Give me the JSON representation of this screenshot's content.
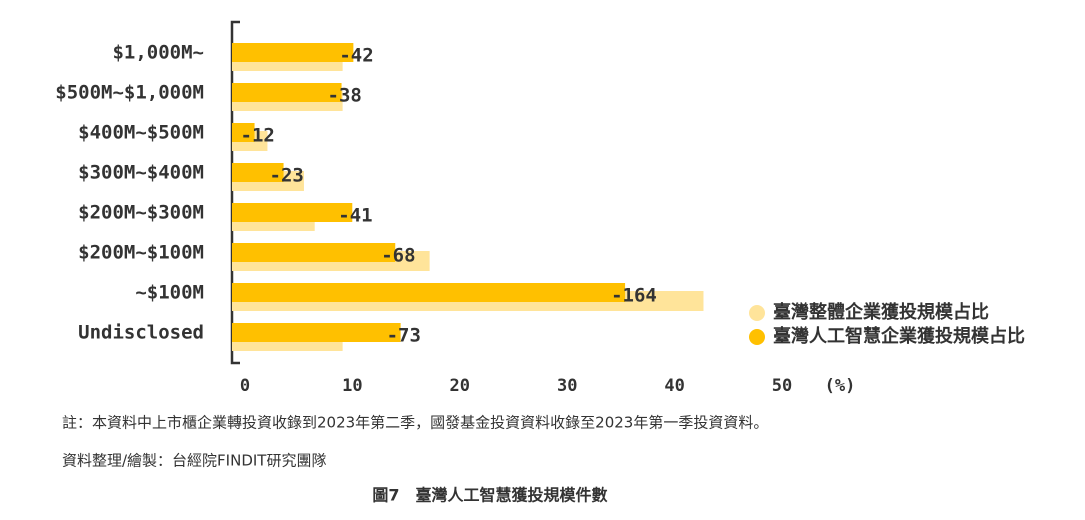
{
  "chart_data": {
    "type": "barh",
    "categories": [
      "$1,000M~",
      "$500M~$1,000M",
      "$400M~$500M",
      "$300M~$400M",
      "$200M~$300M",
      "$200M~$100M",
      "~$100M",
      "Undisclosed"
    ],
    "series": [
      {
        "name": "臺灣整體企業獲投規模占比",
        "color": "#FFE49A",
        "values": [
          10.3,
          10.3,
          3.3,
          6.7,
          7.7,
          18.4,
          43.9,
          10.3
        ]
      },
      {
        "name": "臺灣人工智慧企業獲投規模占比",
        "color": "#FFC000",
        "values": [
          11.3,
          10.2,
          2.1,
          4.8,
          11.2,
          15.2,
          36.6,
          15.7
        ]
      }
    ],
    "bar_labels": [
      "-42",
      "-38",
      "-12",
      "-23",
      "-41",
      "-68",
      "-164",
      "-73"
    ],
    "xlim": [
      0,
      50
    ],
    "xticks": [
      0,
      10,
      20,
      30,
      40,
      50
    ],
    "x_label": "(%)",
    "notes": [
      "註：本資料中上市櫃企業轉投資收錄到2023年第二季，國發基金投資資料收錄至2023年第一季投資資料。",
      "資料整理/繪製：台經院FINDIT研究團隊"
    ],
    "title": "圖7　臺灣人工智慧獲投規模件數"
  }
}
